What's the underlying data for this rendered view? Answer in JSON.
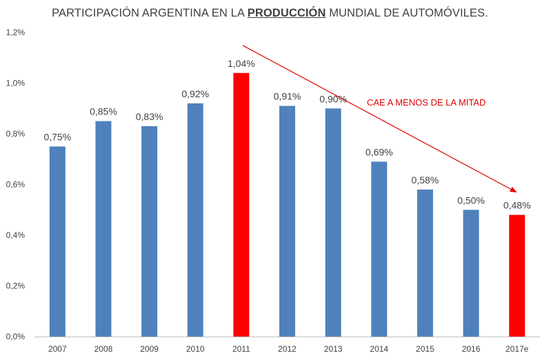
{
  "title": {
    "prefix": "PARTICIPACIÓN ARGENTINA EN LA ",
    "highlight": "PRODUCCIÓN",
    "suffix": " MUNDIAL DE AUTOMÓVILES."
  },
  "chart_data": {
    "type": "bar",
    "title": "PARTICIPACIÓN ARGENTINA EN LA PRODUCCIÓN MUNDIAL DE AUTOMÓVILES.",
    "categories": [
      "2007",
      "2008",
      "2009",
      "2010",
      "2011",
      "2012",
      "2013",
      "2014",
      "2015",
      "2016",
      "2017e"
    ],
    "values": [
      0.75,
      0.85,
      0.83,
      0.92,
      1.04,
      0.91,
      0.9,
      0.69,
      0.58,
      0.5,
      0.48
    ],
    "data_labels": [
      "0,75%",
      "0,85%",
      "0,83%",
      "0,92%",
      "1,04%",
      "0,91%",
      "0,90%",
      "0,69%",
      "0,58%",
      "0,50%",
      "0,48%"
    ],
    "highlighted": [
      "2011",
      "2017e"
    ],
    "ylim": [
      0,
      1.2
    ],
    "yticks": [
      0,
      0.2,
      0.4,
      0.6,
      0.8,
      1.0,
      1.2
    ],
    "ytick_labels": [
      "0,0%",
      "0,2%",
      "0,4%",
      "0,6%",
      "0,8%",
      "1,0%",
      "1,2%"
    ],
    "xlabel": "",
    "ylabel": "",
    "grid": false,
    "annotation": {
      "text": "CAE A MENOS DE LA MITAD",
      "arrow_from": "2011",
      "arrow_to": "2017e"
    },
    "colors": {
      "bar": "#4f81bd",
      "highlight": "#ff0000",
      "annotation": "#e00000",
      "axis": "#bfbfbf",
      "text": "#404040"
    }
  }
}
